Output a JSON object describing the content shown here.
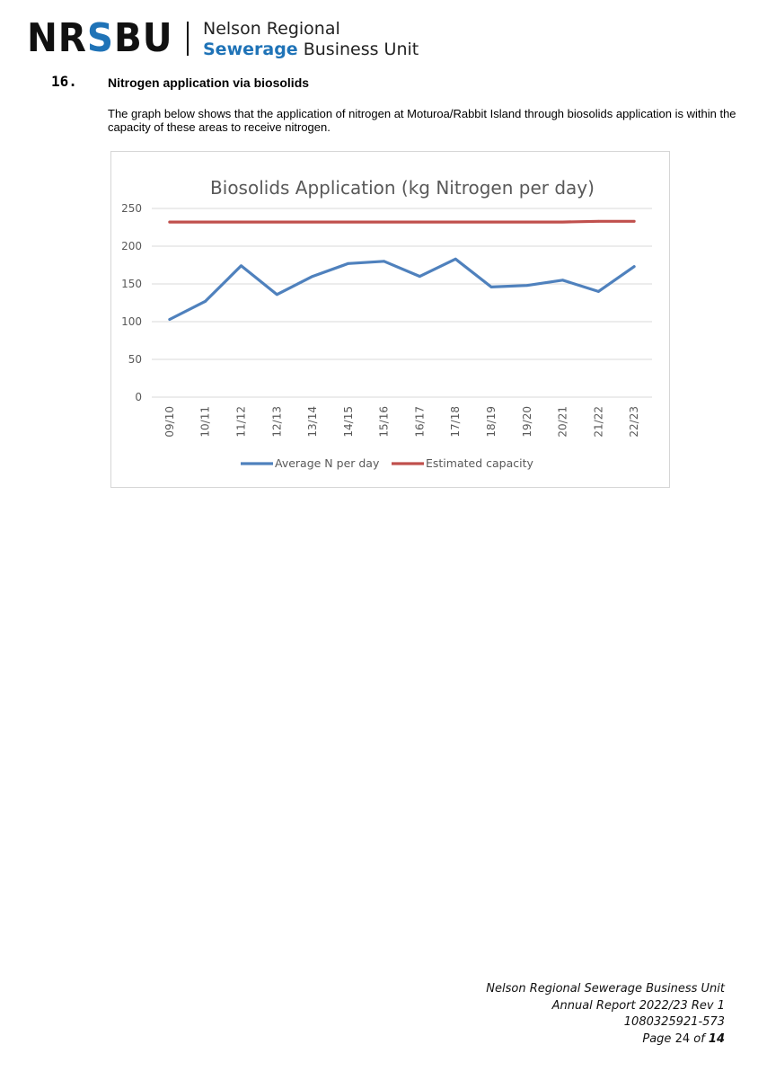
{
  "header": {
    "logo_dark_1": "NR",
    "logo_blue": "S",
    "logo_dark_2": "BU",
    "org_line1": "Nelson Regional",
    "org_line2_blue": "Sewerage",
    "org_line2_rest": " Business Unit"
  },
  "section": {
    "number": "16.",
    "title": "Nitrogen application via biosolids",
    "intro": "The graph below shows that the application of nitrogen at Moturoa/Rabbit Island through biosolids application is within the capacity of these areas to receive nitrogen."
  },
  "colors": {
    "average": "#4f81bd",
    "capacity": "#c0504d",
    "brand_blue": "#1f73b7"
  },
  "chart_data": {
    "type": "line",
    "title": "Biosolids Application (kg Nitrogen per day)",
    "xlabel": "",
    "ylabel": "",
    "categories": [
      "09/10",
      "10/11",
      "11/12",
      "12/13",
      "13/14",
      "14/15",
      "15/16",
      "16/17",
      "17/18",
      "18/19",
      "19/20",
      "20/21",
      "21/22",
      "22/23"
    ],
    "ylim": [
      0,
      250
    ],
    "yticks": [
      0,
      50,
      100,
      150,
      200,
      250
    ],
    "grid": true,
    "legend_position": "bottom",
    "series": [
      {
        "name": "Average N per day",
        "color": "#4f81bd",
        "values": [
          103,
          127,
          174,
          136,
          160,
          177,
          180,
          160,
          183,
          146,
          148,
          155,
          140,
          173
        ]
      },
      {
        "name": "Estimated capacity",
        "color": "#c0504d",
        "values": [
          232,
          232,
          232,
          232,
          232,
          232,
          232,
          232,
          232,
          232,
          232,
          232,
          233,
          233
        ]
      }
    ]
  },
  "footer": {
    "org": "Nelson Regional Sewerage Business Unit",
    "report": "Annual Report 2022/23 Rev 1",
    "doc_id": "1080325921-573",
    "page_prefix": "Page ",
    "page_num": "24",
    "page_of": " of ",
    "page_total": "14"
  }
}
